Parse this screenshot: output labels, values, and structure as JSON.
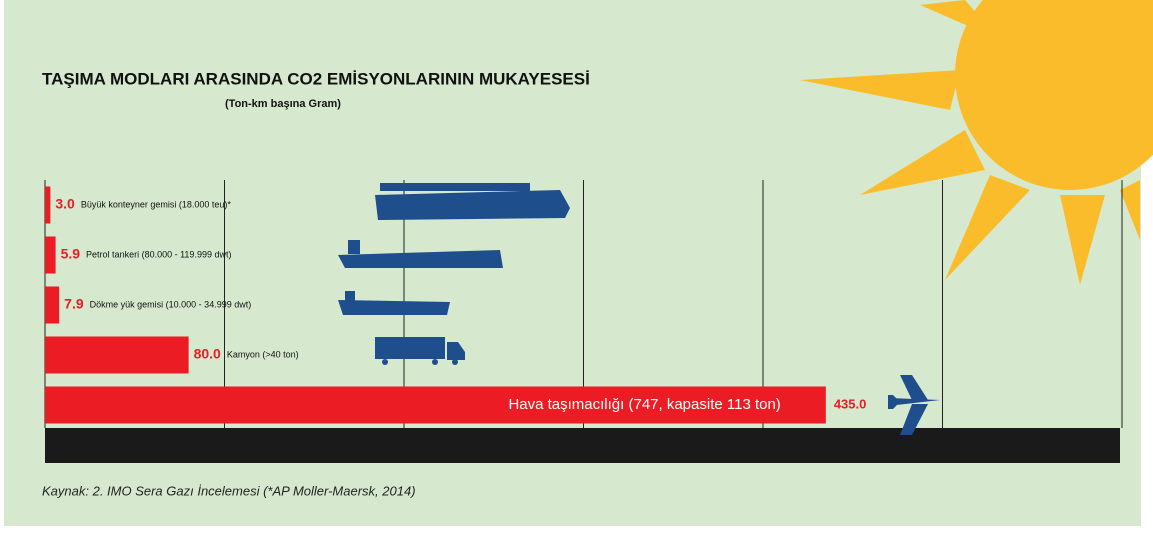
{
  "chart_data": {
    "type": "bar",
    "orientation": "horizontal",
    "title": "TAŞIMA MODLARI ARASINDA CO2 EMİSYONLARININ MUKAYESESİ",
    "subtitle": "(Ton-km başına Gram)",
    "categories": [
      "Büyük konteyner gemisi (18.000 teu)*",
      "Petrol tankeri (80.000 - 119.999 dwt)",
      "Dökme yük gemisi (10.000 - 34.999 dwt)",
      "Kamyon (>40 ton)",
      "Hava taşımacılığı (747, kapasite 113 ton)"
    ],
    "values": [
      3,
      5.9,
      7.9,
      80,
      435
    ],
    "value_labels": [
      "3.0",
      "5.9",
      "7.9",
      "80.0",
      "435.0"
    ],
    "color": "#ec1c24",
    "xlim": [
      0,
      600
    ],
    "xticks": [
      0,
      100,
      200,
      300,
      400,
      500,
      600
    ],
    "grid": true,
    "source": "Kaynak: 2. IMO Sera Gazı İncelemesi (*AP Moller-Maersk, 2014)"
  }
}
